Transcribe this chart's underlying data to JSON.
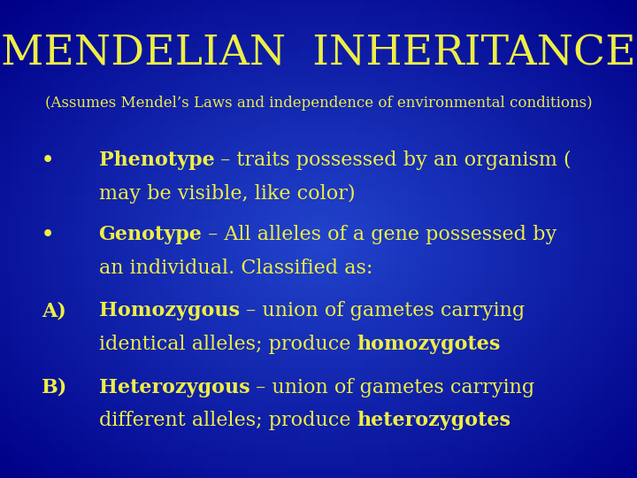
{
  "bg_color_center": "#2244cc",
  "bg_color_edge": "#000088",
  "title": "MENDELIAN  INHERITANCE",
  "subtitle": "(Assumes Mendel’s Laws and independence of environmental conditions)",
  "title_color": "#eeee44",
  "text_color": "#eeee44",
  "title_fontsize": 34,
  "subtitle_fontsize": 12,
  "body_fontsize": 16,
  "lines": [
    {
      "label": "•",
      "bold": "Phenotype",
      "normal": " – traits possessed by an organism (",
      "line2": "may be visible, like color)",
      "bold2": ""
    },
    {
      "label": "•",
      "bold": "Genotype",
      "normal": " – All alleles of a gene possessed by",
      "line2": "an individual. Classified as:",
      "bold2": ""
    },
    {
      "label": "A)",
      "bold": "Homozygous",
      "normal": " – union of gametes carrying",
      "line2": "identical alleles; produce ",
      "bold2": "homozygotes"
    },
    {
      "label": "B)",
      "bold": "Heterozygous",
      "normal": " – union of gametes carrying",
      "line2": "different alleles; produce ",
      "bold2": "heterozygotes"
    }
  ]
}
